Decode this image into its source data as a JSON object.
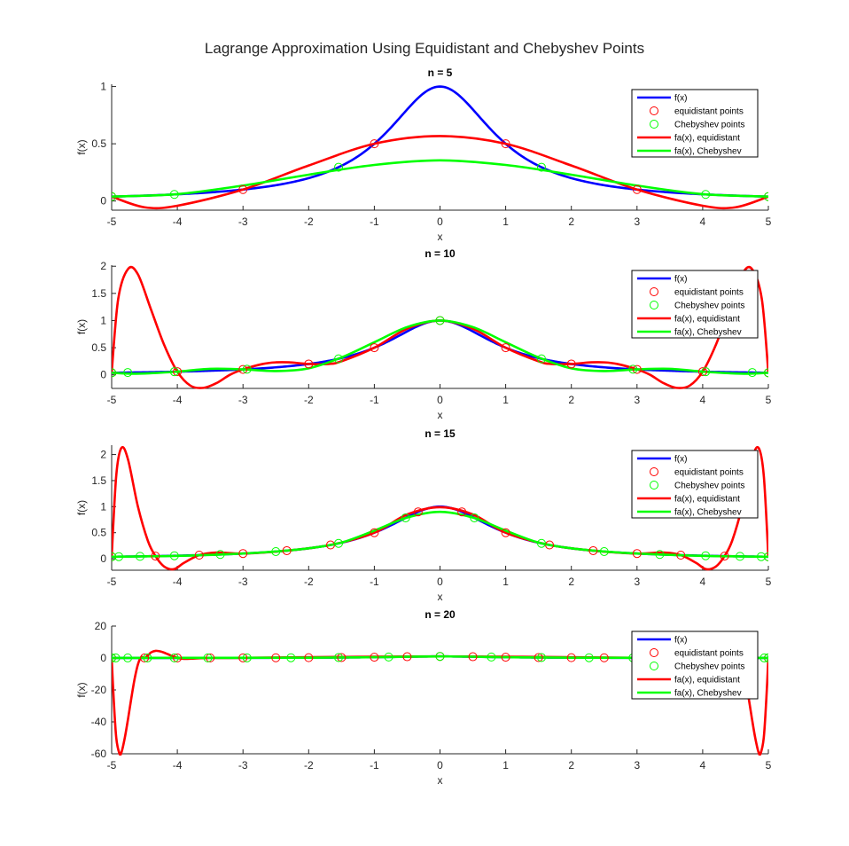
{
  "figure": {
    "title": "Lagrange Approximation Using Equidistant and Chebyshev Points"
  },
  "colors": {
    "f": "#0000FF",
    "equidistant": "#FF0000",
    "chebyshev": "#00FF00",
    "axis": "#262626"
  },
  "legend": {
    "placement": "top-right",
    "entries": [
      {
        "label": "f(x)",
        "kind": "line",
        "color": "#0000FF"
      },
      {
        "label": "equidistant points",
        "kind": "marker",
        "color": "#FF0000"
      },
      {
        "label": "Chebyshev points",
        "kind": "marker",
        "color": "#00FF00"
      },
      {
        "label": "fa(x), equidistant",
        "kind": "line",
        "color": "#FF0000"
      },
      {
        "label": "fa(x), Chebyshev",
        "kind": "line",
        "color": "#00FF00"
      }
    ]
  },
  "chart_data": [
    {
      "type": "line",
      "title": "n = 5",
      "n": 5,
      "xlabel": "x",
      "ylabel": "f(x)",
      "xlim": [
        -5,
        5
      ],
      "ylim": [
        -0.08,
        1.02
      ],
      "xticks": [
        "-5",
        "-4",
        "-3",
        "-2",
        "-1",
        "0",
        "1",
        "2",
        "3",
        "4",
        "5"
      ],
      "yticks": [
        {
          "value": 0,
          "label": "0"
        },
        {
          "value": 0.5,
          "label": "0.5"
        },
        {
          "value": 1,
          "label": "1"
        }
      ],
      "series": [
        {
          "name": "f(x)",
          "function": "1/(1+x^2)"
        },
        {
          "name": "equidistant points",
          "x": [
            -5,
            -3,
            -1,
            1,
            3,
            5
          ],
          "y": [
            0.0385,
            0.1,
            0.5,
            0.5,
            0.1,
            0.0385
          ]
        },
        {
          "name": "Chebyshev points",
          "x": [
            -5,
            -4.045,
            -1.545,
            1.545,
            4.045,
            5
          ],
          "y": [
            0.0385,
            0.0576,
            0.2952,
            0.2952,
            0.0576,
            0.0385
          ]
        },
        {
          "name": "fa(x), equidistant",
          "x": [
            -5,
            -4.5,
            -4,
            -3,
            -2,
            -1,
            0,
            1,
            2,
            3,
            4,
            4.5,
            5
          ],
          "y": [
            0.0385,
            -0.055,
            -0.041,
            0.1,
            0.31,
            0.5,
            0.567,
            0.5,
            0.31,
            0.1,
            -0.041,
            -0.055,
            0.0385
          ]
        },
        {
          "name": "fa(x), Chebyshev",
          "x": [
            -5,
            -4,
            -3,
            -2,
            -1,
            0,
            1,
            2,
            3,
            4,
            5
          ],
          "y": [
            0.0385,
            0.06,
            0.135,
            0.23,
            0.315,
            0.355,
            0.315,
            0.23,
            0.135,
            0.06,
            0.0385
          ]
        }
      ]
    },
    {
      "type": "line",
      "title": "n = 10",
      "n": 10,
      "xlabel": "x",
      "ylabel": "f(x)",
      "xlim": [
        -5,
        5
      ],
      "ylim": [
        -0.25,
        2.02
      ],
      "xticks": [
        "-5",
        "-4",
        "-3",
        "-2",
        "-1",
        "0",
        "1",
        "2",
        "3",
        "4",
        "5"
      ],
      "yticks": [
        {
          "value": 0,
          "label": "0"
        },
        {
          "value": 0.5,
          "label": "0.5"
        },
        {
          "value": 1,
          "label": "1"
        },
        {
          "value": 1.5,
          "label": "1.5"
        },
        {
          "value": 2,
          "label": "2"
        }
      ],
      "series": [
        {
          "name": "f(x)",
          "function": "1/(1+x^2)"
        },
        {
          "name": "equidistant points",
          "x": [
            -5,
            -4,
            -3,
            -2,
            -1,
            0,
            1,
            2,
            3,
            4,
            5
          ],
          "y": [
            0.0385,
            0.0588,
            0.1,
            0.2,
            0.5,
            1,
            0.5,
            0.2,
            0.1,
            0.0588,
            0.0385
          ]
        },
        {
          "name": "Chebyshev points",
          "x": [
            -5,
            -4.755,
            -4.045,
            -2.939,
            -1.545,
            0,
            1.545,
            2.939,
            4.045,
            4.755,
            5
          ],
          "y": [
            0.0385,
            0.0424,
            0.0576,
            0.1038,
            0.2952,
            1,
            0.2952,
            0.1038,
            0.0576,
            0.0424,
            0.0385
          ]
        },
        {
          "name": "fa(x), equidistant",
          "x": [
            -5,
            -4.9,
            -4.75,
            -4.6,
            -4.4,
            -4.2,
            -4,
            -3.8,
            -3.6,
            -3.4,
            -3.2,
            -3,
            -2.7,
            -2.5,
            -2.3,
            -2,
            -1.7,
            -1.5,
            -1,
            -0.5,
            0,
            0.5,
            1,
            1.5,
            1.7,
            2,
            2.3,
            2.5,
            2.7,
            3,
            3.2,
            3.4,
            3.6,
            3.8,
            4,
            4.2,
            4.4,
            4.6,
            4.75,
            4.9,
            5
          ],
          "y": [
            0.0385,
            1.4,
            1.95,
            1.85,
            1.2,
            0.55,
            0.0588,
            -0.2,
            -0.24,
            -0.15,
            0,
            0.1,
            0.2,
            0.23,
            0.23,
            0.2,
            0.2,
            0.25,
            0.5,
            0.85,
            1,
            0.85,
            0.5,
            0.25,
            0.2,
            0.2,
            0.23,
            0.23,
            0.2,
            0.1,
            0,
            -0.15,
            -0.24,
            -0.2,
            0.0588,
            0.55,
            1.2,
            1.85,
            1.95,
            1.4,
            0.0385
          ]
        },
        {
          "name": "fa(x), Chebyshev",
          "x": [
            -5,
            -4.7,
            -4.4,
            -4,
            -3.5,
            -3,
            -2.5,
            -2,
            -1.5,
            -1,
            -0.5,
            0,
            0.5,
            1,
            1.5,
            2,
            2.5,
            3,
            3.5,
            4,
            4.4,
            4.7,
            5
          ],
          "y": [
            0.0385,
            0.02,
            0.03,
            0.058,
            0.11,
            0.1,
            0.07,
            0.12,
            0.32,
            0.6,
            0.88,
            1,
            0.88,
            0.6,
            0.32,
            0.12,
            0.07,
            0.1,
            0.11,
            0.058,
            0.03,
            0.02,
            0.0385
          ]
        }
      ]
    },
    {
      "type": "line",
      "title": "n = 15",
      "n": 15,
      "xlabel": "x",
      "ylabel": "f(x)",
      "xlim": [
        -5,
        5
      ],
      "ylim": [
        -0.22,
        2.18
      ],
      "xticks": [
        "-5",
        "-4",
        "-3",
        "-2",
        "-1",
        "0",
        "1",
        "2",
        "3",
        "4",
        "5"
      ],
      "yticks": [
        {
          "value": 0,
          "label": "0"
        },
        {
          "value": 0.5,
          "label": "0.5"
        },
        {
          "value": 1,
          "label": "1"
        },
        {
          "value": 1.5,
          "label": "1.5"
        },
        {
          "value": 2,
          "label": "2"
        }
      ],
      "series": [
        {
          "name": "f(x)",
          "function": "1/(1+x^2)"
        },
        {
          "name": "equidistant points",
          "x": [
            -5,
            -4.333,
            -3.667,
            -3,
            -2.333,
            -1.667,
            -1,
            -0.333,
            0.333,
            1,
            1.667,
            2.333,
            3,
            3.667,
            4.333,
            5
          ],
          "y": [
            0.0385,
            0.0506,
            0.0692,
            0.1,
            0.1552,
            0.2647,
            0.5,
            0.9,
            0.9,
            0.5,
            0.2647,
            0.1552,
            0.1,
            0.0692,
            0.0506,
            0.0385
          ]
        },
        {
          "name": "Chebyshev points",
          "x": [
            -5,
            -4.891,
            -4.568,
            -4.045,
            -3.346,
            -2.5,
            -1.545,
            -0.523,
            0.523,
            1.545,
            2.5,
            3.346,
            4.045,
            4.568,
            4.891,
            5
          ],
          "y": [
            0.0385,
            0.0401,
            0.0457,
            0.0576,
            0.082,
            0.1379,
            0.2952,
            0.7852,
            0.7852,
            0.2952,
            0.1379,
            0.082,
            0.0576,
            0.0457,
            0.0401,
            0.0385
          ]
        },
        {
          "name": "fa(x), equidistant",
          "x": [
            -5,
            -4.93,
            -4.85,
            -4.75,
            -4.6,
            -4.45,
            -4.333,
            -4.2,
            -4.05,
            -3.9,
            -3.667,
            -3.4,
            -3,
            -2.333,
            -1.667,
            -1,
            -0.5,
            0,
            0.5,
            1,
            1.667,
            2.333,
            3,
            3.4,
            3.667,
            3.9,
            4.05,
            4.2,
            4.333,
            4.45,
            4.6,
            4.75,
            4.85,
            4.93,
            5
          ],
          "y": [
            0.0385,
            1.6,
            2.13,
            1.9,
            1.0,
            0.35,
            0.0506,
            -0.15,
            -0.2,
            -0.08,
            0.0692,
            0.12,
            0.1,
            0.1552,
            0.2647,
            0.5,
            0.85,
            0.99,
            0.85,
            0.5,
            0.2647,
            0.1552,
            0.1,
            0.12,
            0.0692,
            -0.08,
            -0.2,
            -0.15,
            0.0506,
            0.35,
            1.0,
            1.9,
            2.13,
            1.6,
            0.0385
          ]
        },
        {
          "name": "fa(x), Chebyshev",
          "x": [
            -5,
            -4,
            -3,
            -2.5,
            -2,
            -1.5,
            -1,
            -0.5,
            0,
            0.5,
            1,
            1.5,
            2,
            2.5,
            3,
            4,
            5
          ],
          "y": [
            0.0385,
            0.055,
            0.1,
            0.14,
            0.2,
            0.31,
            0.54,
            0.79,
            0.9,
            0.79,
            0.54,
            0.31,
            0.2,
            0.14,
            0.1,
            0.055,
            0.0385
          ]
        }
      ]
    },
    {
      "type": "line",
      "title": "n = 20",
      "n": 20,
      "xlabel": "x",
      "ylabel": "f(x)",
      "xlim": [
        -5,
        5
      ],
      "ylim": [
        -60,
        20
      ],
      "xticks": [
        "-5",
        "-4",
        "-3",
        "-2",
        "-1",
        "0",
        "1",
        "2",
        "3",
        "4",
        "5"
      ],
      "yticks": [
        {
          "value": -60,
          "label": "-60"
        },
        {
          "value": -40,
          "label": "-40"
        },
        {
          "value": -20,
          "label": "-20"
        },
        {
          "value": 0,
          "label": "0"
        },
        {
          "value": 20,
          "label": "20"
        }
      ],
      "series": [
        {
          "name": "f(x)",
          "function": "1/(1+x^2)"
        },
        {
          "name": "equidistant points",
          "x": [
            -5,
            -4.5,
            -4,
            -3.5,
            -3,
            -2.5,
            -2,
            -1.5,
            -1,
            -0.5,
            0,
            0.5,
            1,
            1.5,
            2,
            2.5,
            3,
            3.5,
            4,
            4.5,
            5
          ],
          "y": [
            0.0385,
            0.0471,
            0.0588,
            0.0755,
            0.1,
            0.1379,
            0.2,
            0.3077,
            0.5,
            0.8,
            1,
            0.8,
            0.5,
            0.3077,
            0.2,
            0.1379,
            0.1,
            0.0755,
            0.0588,
            0.0471,
            0.0385
          ]
        },
        {
          "name": "Chebyshev points",
          "x": [
            -5,
            -4.938,
            -4.755,
            -4.455,
            -4.045,
            -3.536,
            -2.939,
            -2.27,
            -1.545,
            -0.782,
            0,
            0.782,
            1.545,
            2.27,
            2.939,
            3.536,
            4.045,
            4.455,
            4.755,
            4.938,
            5
          ],
          "y": [
            0.0385,
            0.0394,
            0.0424,
            0.0479,
            0.0576,
            0.0741,
            0.1038,
            0.1625,
            0.2952,
            0.6205,
            1,
            0.6205,
            0.2952,
            0.1625,
            0.1038,
            0.0741,
            0.0576,
            0.0479,
            0.0424,
            0.0394,
            0.0385
          ]
        },
        {
          "name": "fa(x), equidistant",
          "x": [
            -5,
            -4.97,
            -4.93,
            -4.88,
            -4.85,
            -4.8,
            -4.75,
            -4.7,
            -4.65,
            -4.6,
            -4.55,
            -4.5,
            -4.45,
            -4.4,
            -4.33,
            -4.25,
            -4.15,
            -4.05,
            -3.9,
            -3.5,
            -3,
            0,
            3,
            3.5,
            3.9,
            4.05,
            4.15,
            4.25,
            4.33,
            4.4,
            4.45,
            4.5,
            4.55,
            4.6,
            4.65,
            4.7,
            4.75,
            4.8,
            4.85,
            4.88,
            4.93,
            4.97,
            5
          ],
          "y": [
            0.0385,
            -25,
            -50,
            -60,
            -59,
            -50,
            -38,
            -25,
            -13,
            -4,
            0.5,
            0.05,
            1.5,
            3.5,
            4.5,
            4,
            2.5,
            0.8,
            -0.5,
            0.1,
            0.1,
            1,
            0.1,
            0.1,
            -0.5,
            0.8,
            2.5,
            4,
            4.5,
            3.5,
            1.5,
            0.05,
            0.5,
            -4,
            -13,
            -25,
            -38,
            -50,
            -59,
            -60,
            -50,
            -25,
            0.0385
          ]
        },
        {
          "name": "fa(x), Chebyshev",
          "x": [
            -5,
            -2,
            -1,
            0,
            1,
            2,
            5
          ],
          "y": [
            0.0385,
            0.2,
            0.5,
            1,
            0.5,
            0.2,
            0.0385
          ]
        }
      ]
    }
  ]
}
